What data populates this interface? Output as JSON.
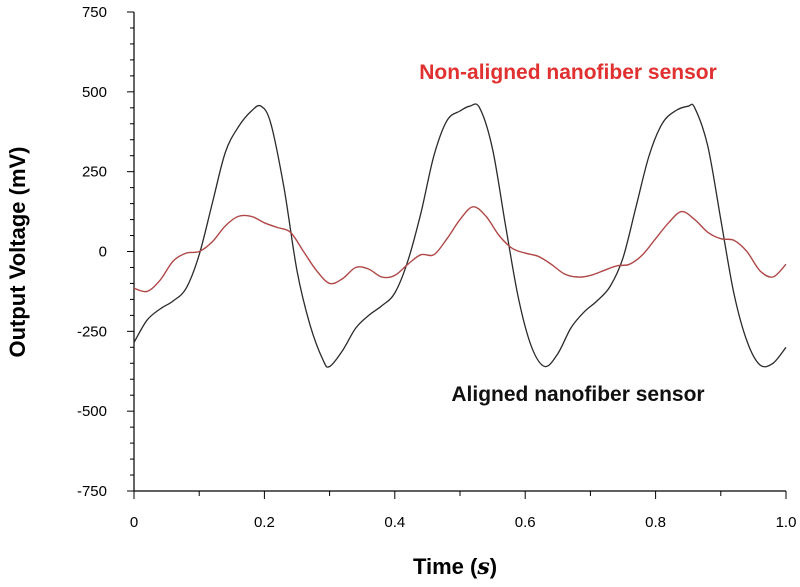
{
  "chart_data": {
    "type": "line",
    "xlabel": "Time",
    "xlabel_unit": "s",
    "ylabel": "Output Voltage (mV)",
    "xlim": [
      0,
      1.0
    ],
    "ylim": [
      -750,
      750
    ],
    "x_ticks": [
      0,
      0.2,
      0.4,
      0.6,
      0.8,
      1.0
    ],
    "x_tick_labels": [
      "0",
      "0.2",
      "0.4",
      "0.6",
      "0.8",
      "1.0"
    ],
    "y_ticks": [
      750,
      500,
      250,
      0,
      -250,
      -500,
      -750
    ],
    "y_tick_labels": [
      "750",
      "500",
      "250",
      "0",
      "-250",
      "-500",
      "-750"
    ],
    "grid": false,
    "series": [
      {
        "name": "Aligned nanofiber sensor",
        "color": "#2b2b2b",
        "x": [
          0,
          0.02,
          0.04,
          0.06,
          0.08,
          0.1,
          0.12,
          0.14,
          0.16,
          0.18,
          0.195,
          0.21,
          0.23,
          0.25,
          0.27,
          0.29,
          0.3,
          0.32,
          0.34,
          0.36,
          0.38,
          0.4,
          0.42,
          0.44,
          0.46,
          0.48,
          0.5,
          0.515,
          0.53,
          0.55,
          0.57,
          0.59,
          0.61,
          0.63,
          0.65,
          0.67,
          0.69,
          0.71,
          0.73,
          0.75,
          0.77,
          0.79,
          0.81,
          0.83,
          0.85,
          0.86,
          0.88,
          0.9,
          0.92,
          0.94,
          0.96,
          0.98,
          1.0
        ],
        "y": [
          -285,
          -215,
          -180,
          -155,
          -115,
          -10,
          150,
          310,
          390,
          440,
          455,
          400,
          200,
          -60,
          -230,
          -340,
          -360,
          -310,
          -240,
          -200,
          -170,
          -130,
          -30,
          120,
          300,
          410,
          440,
          455,
          450,
          320,
          80,
          -150,
          -300,
          -360,
          -320,
          -240,
          -190,
          -155,
          -110,
          -20,
          140,
          300,
          400,
          440,
          455,
          450,
          330,
          100,
          -130,
          -280,
          -355,
          -350,
          -300
        ]
      },
      {
        "name": "Non-aligned nanofiber sensor",
        "color": "#b04848",
        "x": [
          0,
          0.02,
          0.04,
          0.06,
          0.08,
          0.1,
          0.12,
          0.14,
          0.16,
          0.18,
          0.2,
          0.22,
          0.24,
          0.26,
          0.28,
          0.3,
          0.32,
          0.34,
          0.36,
          0.38,
          0.4,
          0.42,
          0.44,
          0.46,
          0.48,
          0.5,
          0.52,
          0.54,
          0.56,
          0.58,
          0.6,
          0.62,
          0.64,
          0.66,
          0.68,
          0.7,
          0.72,
          0.74,
          0.76,
          0.78,
          0.8,
          0.82,
          0.84,
          0.86,
          0.88,
          0.9,
          0.92,
          0.94,
          0.96,
          0.98,
          1.0
        ],
        "y": [
          -115,
          -125,
          -90,
          -30,
          -5,
          0,
          30,
          80,
          110,
          110,
          90,
          75,
          60,
          0,
          -60,
          -100,
          -85,
          -50,
          -55,
          -80,
          -75,
          -40,
          -10,
          -10,
          40,
          100,
          140,
          110,
          50,
          10,
          -5,
          -15,
          -40,
          -70,
          -80,
          -75,
          -60,
          -45,
          -40,
          -10,
          40,
          90,
          125,
          100,
          60,
          40,
          35,
          0,
          -60,
          -80,
          -40
        ]
      }
    ],
    "annotations": [
      {
        "text": "Non-aligned nanofiber sensor",
        "color": "#e03030"
      },
      {
        "text": "Aligned nanofiber sensor",
        "color": "#111111"
      }
    ]
  }
}
